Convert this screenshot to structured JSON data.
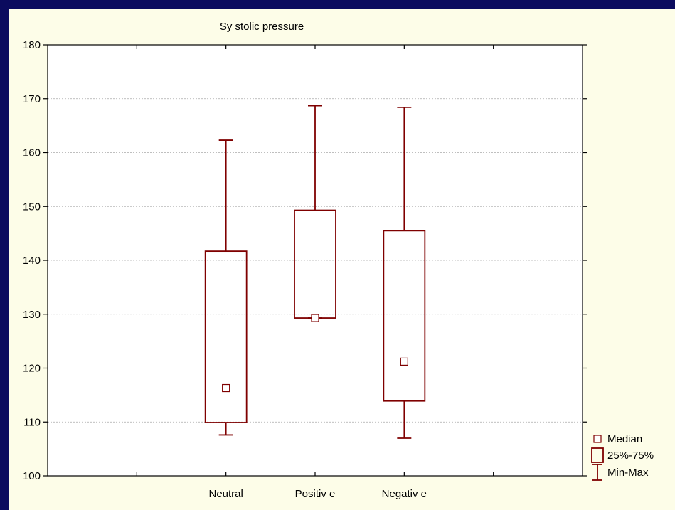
{
  "chart_data": {
    "type": "box",
    "title": "Sy stolic pressure",
    "xlabel": "",
    "ylabel": "",
    "ylim": [
      100,
      180
    ],
    "yticks": [
      100,
      110,
      120,
      130,
      140,
      150,
      160,
      170,
      180
    ],
    "categories": [
      "Neutral",
      "Positiv e",
      "Negativ e"
    ],
    "category_slots": 6,
    "category_positions": [
      2,
      3,
      4
    ],
    "grid": true,
    "legend_position": "bottom-right",
    "colors": {
      "box": "#7f0000",
      "plot_bg": "#ffffff",
      "page_bg": "#fdfde8",
      "frame": "#0b0b5e",
      "grid": "#aaaaaa"
    },
    "boxes": [
      {
        "name": "Neutral",
        "min": 107.6,
        "q1": 109.9,
        "median": 116.3,
        "q3": 141.7,
        "max": 162.3
      },
      {
        "name": "Positiv e",
        "min": 129.3,
        "q1": 129.3,
        "median": 129.3,
        "q3": 149.3,
        "max": 168.7
      },
      {
        "name": "Negativ e",
        "min": 107.0,
        "q1": 113.9,
        "median": 121.2,
        "q3": 145.5,
        "max": 168.4
      }
    ],
    "legend": [
      {
        "label": "Median",
        "icon": "median-square-icon"
      },
      {
        "label": "25%-75%",
        "icon": "box-icon"
      },
      {
        "label": "Min-Max",
        "icon": "whisker-icon"
      }
    ]
  }
}
